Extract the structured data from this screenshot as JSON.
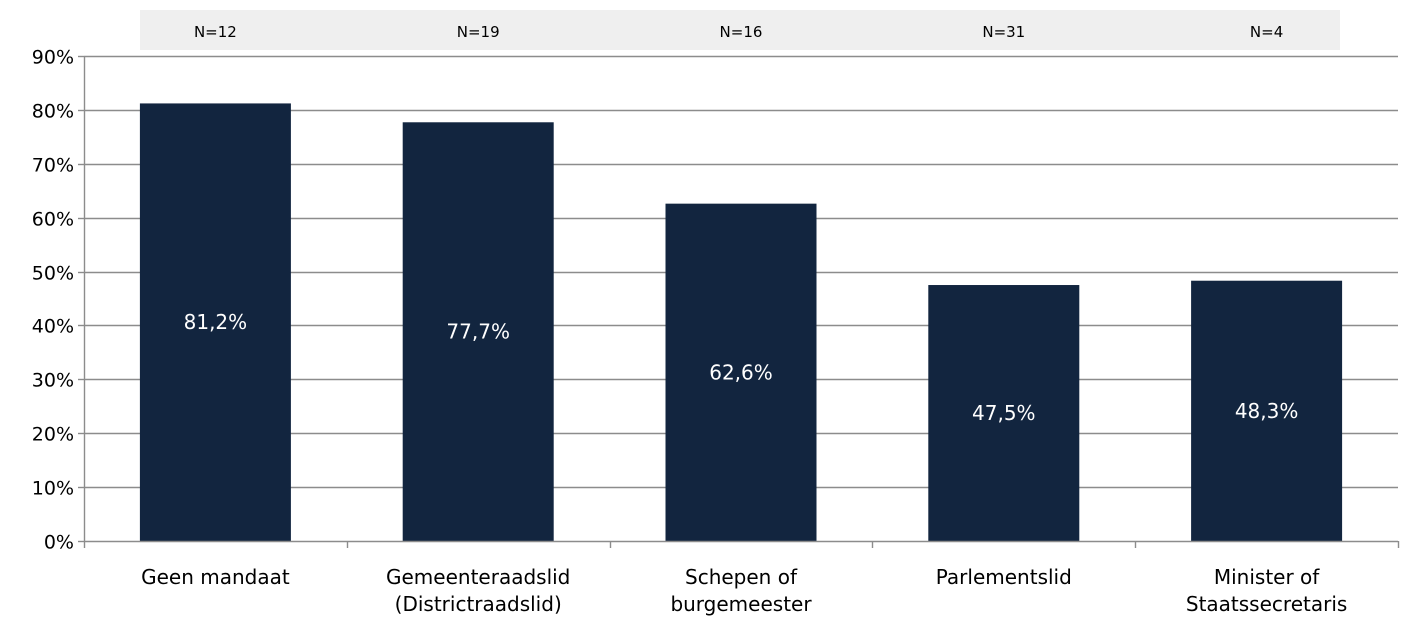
{
  "chart_data": {
    "type": "bar",
    "categories": [
      [
        "Geen mandaat"
      ],
      [
        "Gemeenteraadslid",
        "(Districtraadslid)"
      ],
      [
        "Schepen of",
        "burgemeester"
      ],
      [
        "Parlementslid"
      ],
      [
        "Minister of",
        "Staatssecretaris"
      ]
    ],
    "values": [
      81.2,
      77.7,
      62.6,
      47.5,
      48.3
    ],
    "data_labels": [
      "81,2%",
      "77,7%",
      "62,6%",
      "47,5%",
      "48,3%"
    ],
    "n_labels": [
      "N=12",
      "N=19",
      "N=16",
      "N=31",
      "N=4"
    ],
    "ylim": [
      0,
      90
    ],
    "yticks": [
      0,
      10,
      20,
      30,
      40,
      50,
      60,
      70,
      80,
      90
    ],
    "ytick_labels": [
      "0%",
      "10%",
      "20%",
      "30%",
      "40%",
      "50%",
      "60%",
      "70%",
      "80%",
      "90%"
    ],
    "grid": true,
    "title": "",
    "xlabel": "",
    "ylabel": "",
    "colors": {
      "bar": "#12253f",
      "grid": "#8c8c8c",
      "n_band": "#efefef",
      "data_label_text": "#ffffff"
    }
  }
}
